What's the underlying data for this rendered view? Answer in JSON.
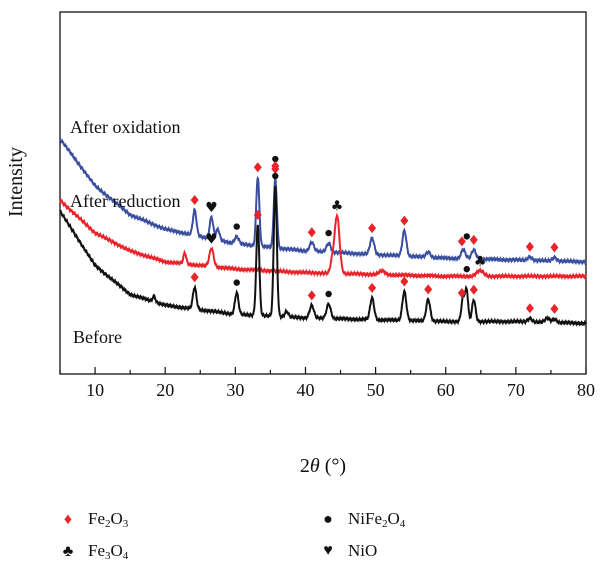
{
  "chart_data": {
    "type": "line",
    "ylabel": "Intensity",
    "xlabel_prefix": "2",
    "xlabel_theta": "θ",
    "xlabel_suffix": " (°)",
    "xlim": [
      5,
      80
    ],
    "x_ticks": [
      "10",
      "20",
      "30",
      "40",
      "50",
      "60",
      "70",
      "80"
    ],
    "y_ticks_shown": false,
    "grid": false,
    "series": [
      {
        "name": "After oxidation",
        "color": "#3a4fa0",
        "baseline": [
          [
            5,
            0.35
          ],
          [
            10,
            0.48
          ],
          [
            15,
            0.56
          ],
          [
            20,
            0.6
          ],
          [
            30,
            0.64
          ],
          [
            40,
            0.66
          ],
          [
            50,
            0.67
          ],
          [
            60,
            0.68
          ],
          [
            70,
            0.685
          ],
          [
            80,
            0.69
          ]
        ],
        "peaks": [
          {
            "x": 24.2,
            "h": 0.07,
            "w": 0.25
          },
          {
            "x": 26.6,
            "h": 0.06,
            "w": 0.25
          },
          {
            "x": 27.5,
            "h": 0.03,
            "w": 0.25
          },
          {
            "x": 30.2,
            "h": 0.02,
            "w": 0.3
          },
          {
            "x": 33.2,
            "h": 0.19,
            "w": 0.22
          },
          {
            "x": 35.7,
            "h": 0.19,
            "w": 0.22
          },
          {
            "x": 40.9,
            "h": 0.025,
            "w": 0.3
          },
          {
            "x": 43.3,
            "h": 0.025,
            "w": 0.3
          },
          {
            "x": 49.5,
            "h": 0.045,
            "w": 0.3
          },
          {
            "x": 54.1,
            "h": 0.07,
            "w": 0.28
          },
          {
            "x": 57.5,
            "h": 0.015,
            "w": 0.3
          },
          {
            "x": 62.5,
            "h": 0.025,
            "w": 0.3
          },
          {
            "x": 64.0,
            "h": 0.025,
            "w": 0.3
          },
          {
            "x": 72.0,
            "h": 0.01,
            "w": 0.3
          },
          {
            "x": 75.5,
            "h": 0.01,
            "w": 0.3
          }
        ]
      },
      {
        "name": "After reduction",
        "color": "#e8242a",
        "baseline": [
          [
            5,
            0.52
          ],
          [
            10,
            0.61
          ],
          [
            15,
            0.66
          ],
          [
            20,
            0.69
          ],
          [
            30,
            0.71
          ],
          [
            40,
            0.72
          ],
          [
            50,
            0.725
          ],
          [
            60,
            0.73
          ],
          [
            70,
            0.73
          ],
          [
            80,
            0.73
          ]
        ],
        "peaks": [
          {
            "x": 22.8,
            "h": 0.03,
            "w": 0.2
          },
          {
            "x": 26.6,
            "h": 0.05,
            "w": 0.3
          },
          {
            "x": 43.8,
            "h": 0.03,
            "w": 0.25
          },
          {
            "x": 44.5,
            "h": 0.16,
            "w": 0.35
          },
          {
            "x": 50.9,
            "h": 0.01,
            "w": 0.4
          },
          {
            "x": 64.9,
            "h": 0.015,
            "w": 0.5
          }
        ]
      },
      {
        "name": "Before",
        "color": "#111111",
        "baseline": [
          [
            5,
            0.55
          ],
          [
            10,
            0.7
          ],
          [
            15,
            0.78
          ],
          [
            20,
            0.81
          ],
          [
            30,
            0.835
          ],
          [
            40,
            0.845
          ],
          [
            50,
            0.85
          ],
          [
            60,
            0.855
          ],
          [
            70,
            0.855
          ],
          [
            80,
            0.86
          ]
        ],
        "peaks": [
          {
            "x": 18.4,
            "h": 0.015,
            "w": 0.2
          },
          {
            "x": 24.2,
            "h": 0.06,
            "w": 0.25
          },
          {
            "x": 30.2,
            "h": 0.06,
            "w": 0.25
          },
          {
            "x": 33.2,
            "h": 0.25,
            "w": 0.22
          },
          {
            "x": 35.7,
            "h": 0.36,
            "w": 0.22
          },
          {
            "x": 37.3,
            "h": 0.015,
            "w": 0.25
          },
          {
            "x": 40.9,
            "h": 0.035,
            "w": 0.3
          },
          {
            "x": 43.3,
            "h": 0.04,
            "w": 0.3
          },
          {
            "x": 49.5,
            "h": 0.06,
            "w": 0.28
          },
          {
            "x": 54.1,
            "h": 0.08,
            "w": 0.28
          },
          {
            "x": 57.5,
            "h": 0.06,
            "w": 0.28
          },
          {
            "x": 62.5,
            "h": 0.07,
            "w": 0.25
          },
          {
            "x": 63.0,
            "h": 0.08,
            "w": 0.2
          },
          {
            "x": 64.0,
            "h": 0.06,
            "w": 0.25
          },
          {
            "x": 72.0,
            "h": 0.01,
            "w": 0.3
          },
          {
            "x": 74.5,
            "h": 0.012,
            "w": 0.3
          },
          {
            "x": 75.5,
            "h": 0.01,
            "w": 0.3
          }
        ]
      }
    ],
    "markers": [
      {
        "symbol": "diamond",
        "x": 24.2,
        "series": 0
      },
      {
        "symbol": "heart",
        "x": 26.6,
        "series": 0
      },
      {
        "symbol": "dot",
        "x": 30.2,
        "series": 0
      },
      {
        "symbol": "diamond",
        "x": 33.2,
        "series": 0
      },
      {
        "symbol": "diamond",
        "x": 35.7,
        "series": 0
      },
      {
        "symbol": "dot",
        "x": 35.7,
        "series": 0,
        "stack": 1
      },
      {
        "symbol": "diamond",
        "x": 40.9,
        "series": 0
      },
      {
        "symbol": "dot",
        "x": 43.3,
        "series": 0
      },
      {
        "symbol": "diamond",
        "x": 49.5,
        "series": 0
      },
      {
        "symbol": "diamond",
        "x": 54.1,
        "series": 0
      },
      {
        "symbol": "diamond",
        "x": 62.3,
        "series": 0
      },
      {
        "symbol": "dot",
        "x": 63.0,
        "series": 0,
        "stack": 1
      },
      {
        "symbol": "diamond",
        "x": 64.0,
        "series": 0
      },
      {
        "symbol": "diamond",
        "x": 72.0,
        "series": 0
      },
      {
        "symbol": "diamond",
        "x": 75.5,
        "series": 0
      },
      {
        "symbol": "heart",
        "x": 26.6,
        "series": 1
      },
      {
        "symbol": "club",
        "x": 44.5,
        "series": 1
      },
      {
        "symbol": "club",
        "x": 64.9,
        "series": 1
      },
      {
        "symbol": "diamond",
        "x": 24.2,
        "series": 2
      },
      {
        "symbol": "dot",
        "x": 30.2,
        "series": 2
      },
      {
        "symbol": "diamond",
        "x": 33.2,
        "series": 2
      },
      {
        "symbol": "diamond",
        "x": 35.7,
        "series": 2,
        "stack": 1
      },
      {
        "symbol": "dot",
        "x": 35.7,
        "series": 2
      },
      {
        "symbol": "diamond",
        "x": 40.9,
        "series": 2
      },
      {
        "symbol": "dot",
        "x": 43.3,
        "series": 2
      },
      {
        "symbol": "diamond",
        "x": 49.5,
        "series": 2
      },
      {
        "symbol": "diamond",
        "x": 54.1,
        "series": 2
      },
      {
        "symbol": "diamond",
        "x": 57.5,
        "series": 2
      },
      {
        "symbol": "diamond",
        "x": 62.3,
        "series": 2
      },
      {
        "symbol": "dot",
        "x": 63.0,
        "series": 2,
        "stack": 1
      },
      {
        "symbol": "diamond",
        "x": 64.0,
        "series": 2
      },
      {
        "symbol": "diamond",
        "x": 72.0,
        "series": 2
      },
      {
        "symbol": "diamond",
        "x": 75.5,
        "series": 2
      }
    ],
    "legend": [
      {
        "symbol": "diamond",
        "color": "#e8242a",
        "base": "Fe",
        "s1": "2",
        "mid": "O",
        "s2": "3",
        "tail": "",
        "s3": ""
      },
      {
        "symbol": "dot",
        "color": "#111111",
        "base": "NiFe",
        "s1": "2",
        "mid": "O",
        "s2": "4",
        "tail": "",
        "s3": ""
      },
      {
        "symbol": "club",
        "color": "#111111",
        "base": "Fe",
        "s1": "3",
        "mid": "O",
        "s2": "4",
        "tail": "",
        "s3": ""
      },
      {
        "symbol": "heart",
        "color": "#111111",
        "base": "NiO",
        "s1": "",
        "mid": "",
        "s2": "",
        "tail": "",
        "s3": ""
      }
    ]
  }
}
